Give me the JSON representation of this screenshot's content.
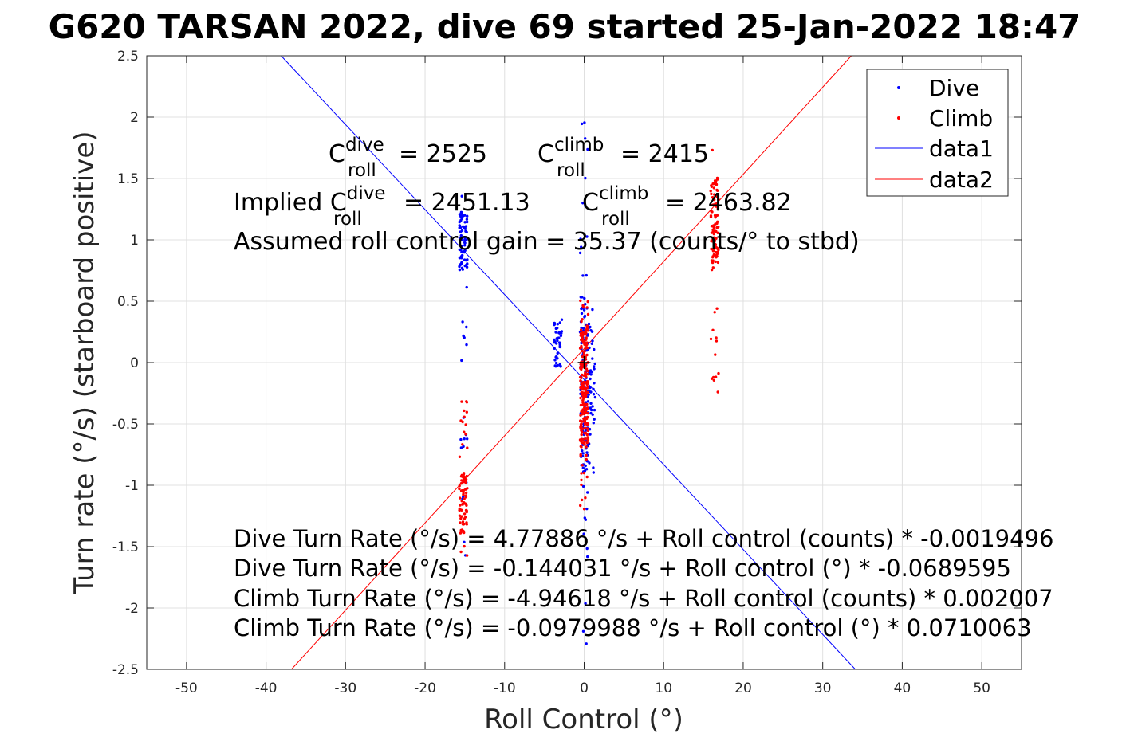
{
  "chart_data": {
    "type": "scatter",
    "title": "G620 TARSAN 2022, dive 69 started 25-Jan-2022 18:47",
    "xlabel": "Roll Control (°)",
    "ylabel": "Turn rate (°/s) (starboard positive)",
    "xlim": [
      -55,
      55
    ],
    "ylim": [
      -2.5,
      2.5
    ],
    "xticks": [
      -50,
      -40,
      -30,
      -20,
      -10,
      0,
      10,
      20,
      30,
      40,
      50
    ],
    "yticks": [
      -2.5,
      -2,
      -1.5,
      -1,
      -0.5,
      0,
      0.5,
      1,
      1.5,
      2,
      2.5
    ],
    "xtick_labels": [
      "-50",
      "-40",
      "-30",
      "-20",
      "-10",
      "0",
      "10",
      "20",
      "30",
      "40",
      "50"
    ],
    "ytick_labels": [
      "-2.5",
      "-2",
      "-1.5",
      "-1",
      "-0.5",
      "0",
      "0.5",
      "1",
      "1.5",
      "2",
      "2.5"
    ],
    "grid": true,
    "legend_position": "top-right",
    "legend": [
      "Dive",
      "Climb",
      "data1",
      "data2"
    ],
    "series": [
      {
        "name": "Dive",
        "kind": "points",
        "color": "#0000ff",
        "clusters": [
          {
            "x": -15.2,
            "y_range": [
              -1.65,
              1.42
            ],
            "y_dense": [
              0.75,
              1.25
            ],
            "count": 90,
            "note": "main points between 0.5 and 1.4 with sparse points down to -1.65"
          },
          {
            "x": -3.3,
            "y_range": [
              -0.1,
              0.38
            ],
            "y_dense": [
              -0.05,
              0.35
            ],
            "count": 40
          },
          {
            "x": 0.0,
            "y_range": [
              -2.35,
              2.15
            ],
            "y_dense": [
              -0.9,
              0.5
            ],
            "count": 140
          },
          {
            "x": 0.9,
            "y_range": [
              -0.9,
              0.45
            ],
            "y_dense": [
              -0.6,
              0.3
            ],
            "count": 50
          }
        ]
      },
      {
        "name": "Climb",
        "kind": "points",
        "color": "#ff0000",
        "clusters": [
          {
            "x": -15.2,
            "y_range": [
              -1.6,
              -0.3
            ],
            "y_dense": [
              -1.4,
              -0.9
            ],
            "count": 90
          },
          {
            "x": 0.0,
            "y_range": [
              -1.2,
              0.55
            ],
            "y_dense": [
              -0.7,
              0.3
            ],
            "count": 220
          },
          {
            "x": 16.4,
            "y_range": [
              -0.27,
              1.78
            ],
            "y_dense": [
              0.8,
              1.5
            ],
            "count": 110
          }
        ]
      },
      {
        "name": "data1",
        "kind": "line",
        "color": "#0000ff",
        "x": [
          -38.1,
          34.1
        ],
        "y": [
          2.5,
          -2.5
        ]
      },
      {
        "name": "data2",
        "kind": "line",
        "color": "#ff0000",
        "x": [
          -36.8,
          33.6
        ],
        "y": [
          -2.5,
          2.5
        ]
      }
    ],
    "centre_marker": {
      "x": 0,
      "y": 0,
      "color": "#000000",
      "symbol": "+"
    }
  },
  "annotations": {
    "c_dive": {
      "base": "C",
      "sup": "dive",
      "sub": "roll",
      "value": "= 2525"
    },
    "c_climb": {
      "base": "C",
      "sup": "climb",
      "sub": "roll",
      "value": "= 2415"
    },
    "implied_prefix": "Implied ",
    "implied_dive": {
      "base": "C",
      "sup": "dive",
      "sub": "roll",
      "value": "= 2451.13"
    },
    "implied_climb": {
      "base": "C",
      "sup": "climb",
      "sub": "roll",
      "value": "= 2463.82"
    },
    "gain": "Assumed roll control gain = 35.37 (counts/° to stbd)",
    "equations": [
      "Dive Turn Rate (°/s) = 4.77886 °/s + Roll control (counts) * -0.0019496",
      "Dive Turn Rate (°/s) = -0.144031 °/s + Roll control (°) * -0.0689595",
      "Climb Turn Rate (°/s) = -4.94618 °/s + Roll control (counts) * 0.002007",
      "Climb Turn Rate (°/s) = -0.0979988 °/s + Roll control (°) * 0.0710063"
    ]
  },
  "colors": {
    "dive": "#0000ff",
    "climb": "#ff0000",
    "grid": "#e0e0e0",
    "axis": "#262626"
  }
}
